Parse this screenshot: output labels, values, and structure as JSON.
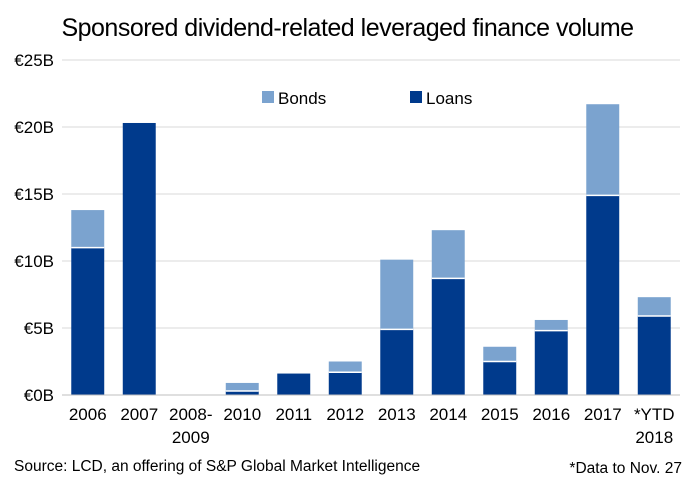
{
  "chart_data": {
    "type": "bar",
    "stacked": true,
    "title": "Sponsored dividend-related leveraged finance volume",
    "categories": [
      "2006",
      "2007",
      "2008-2009",
      "2010",
      "2011",
      "2012",
      "2013",
      "2014",
      "2015",
      "2016",
      "2017",
      "*YTD 2018"
    ],
    "series": [
      {
        "name": "Loans",
        "color": "#003A8C",
        "values": [
          11.0,
          20.3,
          0,
          0.3,
          1.6,
          1.7,
          4.9,
          8.7,
          2.5,
          4.8,
          14.9,
          5.9
        ]
      },
      {
        "name": "Bonds",
        "color": "#7BA3CF",
        "values": [
          2.8,
          0,
          0,
          0.6,
          0,
          0.8,
          5.2,
          3.6,
          1.1,
          0.8,
          6.8,
          1.4
        ]
      }
    ],
    "yticks": [
      "€0B",
      "€5B",
      "€10B",
      "€15B",
      "€20B",
      "€25B"
    ],
    "ylim": [
      0,
      25
    ],
    "grid": true,
    "legend_position": "top"
  },
  "source": "Source: LCD, an offering of S&P Global Market Intelligence",
  "footnote": "*Data to Nov. 27"
}
